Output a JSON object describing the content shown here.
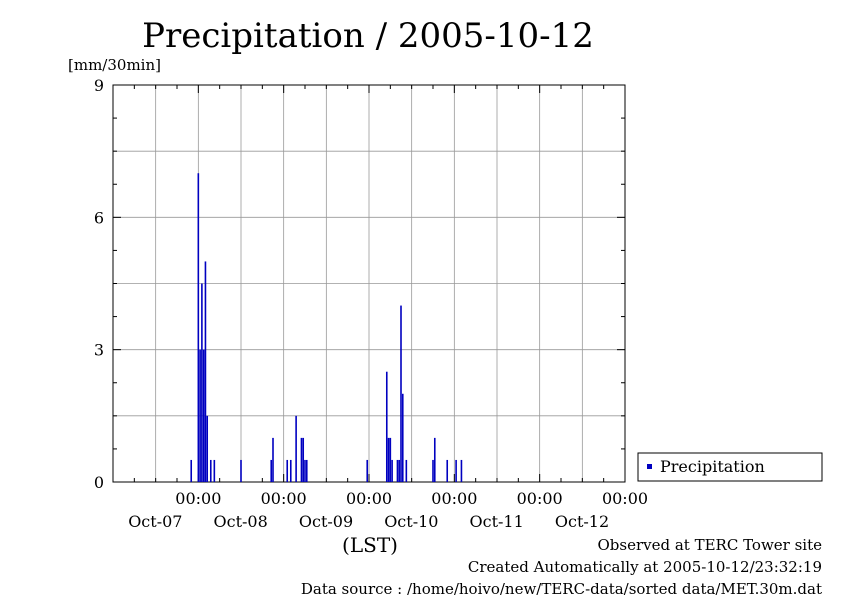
{
  "chart_data": {
    "type": "bar",
    "title": "Precipitation / 2005-10-12",
    "ylabel": "[mm/30min]",
    "xlabel": "(LST)",
    "ylim": [
      0,
      9
    ],
    "yticks": [
      "0",
      "3",
      "6",
      "9"
    ],
    "xlim": [
      "2005-10-06 00:00",
      "2005-10-12 00:00"
    ],
    "xticks": [
      {
        "time": "00:00",
        "date": "Oct-07"
      },
      {
        "time": "00:00",
        "date": "Oct-08"
      },
      {
        "time": "00:00",
        "date": "Oct-09"
      },
      {
        "time": "00:00",
        "date": "Oct-10"
      },
      {
        "time": "00:00",
        "date": "Oct-11"
      },
      {
        "time": "00:00",
        "date": "Oct-12"
      }
    ],
    "grid": true,
    "legend_position": "bottom-right",
    "series": [
      {
        "name": "Precipitation",
        "color": "#0000c0",
        "points": [
          {
            "t": "2005-10-06 22:00",
            "v": 0.5
          },
          {
            "t": "2005-10-07 00:00",
            "v": 7.0
          },
          {
            "t": "2005-10-07 00:30",
            "v": 3.0
          },
          {
            "t": "2005-10-07 01:00",
            "v": 4.5
          },
          {
            "t": "2005-10-07 01:30",
            "v": 3.0
          },
          {
            "t": "2005-10-07 02:00",
            "v": 5.0
          },
          {
            "t": "2005-10-07 02:30",
            "v": 1.5
          },
          {
            "t": "2005-10-07 03:30",
            "v": 0.5
          },
          {
            "t": "2005-10-07 04:30",
            "v": 0.5
          },
          {
            "t": "2005-10-07 12:00",
            "v": 0.5
          },
          {
            "t": "2005-10-07 20:30",
            "v": 0.5
          },
          {
            "t": "2005-10-07 21:00",
            "v": 1.0
          },
          {
            "t": "2005-10-08 01:00",
            "v": 0.5
          },
          {
            "t": "2005-10-08 02:00",
            "v": 0.5
          },
          {
            "t": "2005-10-08 03:30",
            "v": 1.5
          },
          {
            "t": "2005-10-08 05:00",
            "v": 1.0
          },
          {
            "t": "2005-10-08 05:30",
            "v": 1.0
          },
          {
            "t": "2005-10-08 06:00",
            "v": 0.5
          },
          {
            "t": "2005-10-08 06:30",
            "v": 0.5
          },
          {
            "t": "2005-10-08 23:30",
            "v": 0.5
          },
          {
            "t": "2005-10-09 05:00",
            "v": 2.5
          },
          {
            "t": "2005-10-09 05:30",
            "v": 1.0
          },
          {
            "t": "2005-10-09 06:00",
            "v": 1.0
          },
          {
            "t": "2005-10-09 06:30",
            "v": 0.5
          },
          {
            "t": "2005-10-09 08:00",
            "v": 0.5
          },
          {
            "t": "2005-10-09 08:30",
            "v": 0.5
          },
          {
            "t": "2005-10-09 09:00",
            "v": 4.0
          },
          {
            "t": "2005-10-09 09:30",
            "v": 2.0
          },
          {
            "t": "2005-10-09 10:30",
            "v": 0.5
          },
          {
            "t": "2005-10-09 18:00",
            "v": 0.5
          },
          {
            "t": "2005-10-09 18:30",
            "v": 1.0
          },
          {
            "t": "2005-10-09 22:00",
            "v": 0.5
          },
          {
            "t": "2005-10-10 00:30",
            "v": 0.5
          },
          {
            "t": "2005-10-10 02:00",
            "v": 0.5
          }
        ]
      }
    ]
  },
  "footer": {
    "observed": "Observed at TERC Tower site",
    "created": "Created Automatically at 2005-10-12/23:32:19",
    "source": "Data source : /home/hoivo/new/TERC-data/sorted  data/MET.30m.dat"
  }
}
